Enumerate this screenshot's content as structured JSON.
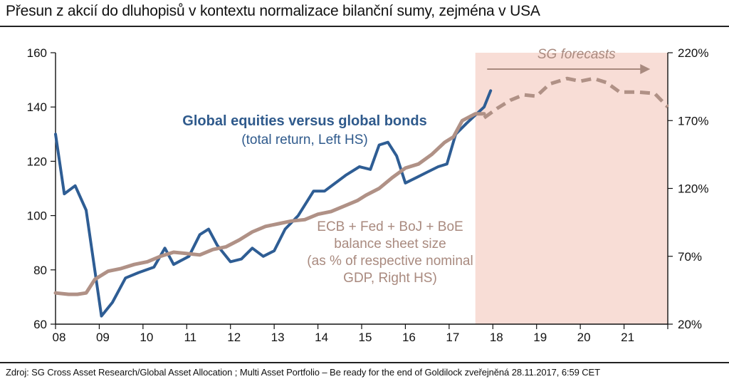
{
  "title": "Přesun z akcií do dluhopisů v kontextu normalizace bilanční sumy, zejména v USA",
  "source": "Zdroj: SG Cross Asset Research/Global Asset Allocation ; Multi Asset Portfolio – Be ready for the end of Goldilock zveřejněná 28.11.2017, 6:59 CET",
  "colors": {
    "equities": "#2e5d94",
    "balance_sheet": "#b09186",
    "forecast_band": "#f8ddd6",
    "annotation_balance": "#a98a7f"
  },
  "chart_data": {
    "type": "line",
    "x_tick_labels": [
      "08",
      "09",
      "10",
      "11",
      "12",
      "13",
      "14",
      "15",
      "16",
      "17",
      "18",
      "19",
      "20",
      "21"
    ],
    "x_range": [
      2008,
      2022
    ],
    "y_left": {
      "range": [
        60,
        160
      ],
      "ticks": [
        "60",
        "80",
        "100",
        "120",
        "140",
        "160"
      ]
    },
    "y_right": {
      "range": [
        20,
        220
      ],
      "ticks": [
        "20%",
        "70%",
        "120%",
        "170%",
        "220%"
      ]
    },
    "forecast_region": {
      "x_start": 2017.6,
      "x_end": 2022.0,
      "label": "SG forecasts"
    },
    "annotations": {
      "equities_title": "Global equities versus global bonds",
      "equities_sub": "(total return, Left HS)",
      "balance_lines": [
        "ECB + Fed + BoJ + BoE",
        "balance sheet size",
        "(as % of respective nominal",
        "GDP, Right HS)"
      ]
    },
    "series": [
      {
        "axis": "left",
        "style": "solid",
        "x": [
          2008.0,
          2008.2,
          2008.45,
          2008.7,
          2009.05,
          2009.3,
          2009.6,
          2009.9,
          2010.25,
          2010.5,
          2010.7,
          2011.05,
          2011.3,
          2011.5,
          2011.7,
          2012.0,
          2012.25,
          2012.5,
          2012.75,
          2013.0,
          2013.25,
          2013.55,
          2013.9,
          2014.15,
          2014.4,
          2014.65,
          2014.95,
          2015.2,
          2015.4,
          2015.6,
          2015.8,
          2016.0,
          2016.25,
          2016.5,
          2016.75,
          2016.95,
          2017.15,
          2017.4,
          2017.6,
          2017.8,
          2017.95
        ],
        "y": [
          130,
          108,
          111,
          102,
          63,
          68,
          77,
          79,
          81,
          88,
          82,
          85,
          93,
          95,
          89,
          83,
          84,
          88,
          85,
          87,
          95,
          100,
          109,
          109,
          112,
          115,
          118,
          117,
          126,
          127,
          122,
          112,
          114,
          116,
          118,
          119,
          130,
          134,
          137,
          140,
          146
        ]
      },
      {
        "axis": "right",
        "style": "solid",
        "x": [
          2008.0,
          2008.3,
          2008.5,
          2008.7,
          2008.9,
          2009.2,
          2009.5,
          2009.8,
          2010.1,
          2010.4,
          2010.7,
          2011.0,
          2011.3,
          2011.6,
          2011.9,
          2012.2,
          2012.5,
          2012.8,
          2013.1,
          2013.4,
          2013.7,
          2014.0,
          2014.3,
          2014.6,
          2014.9,
          2015.1,
          2015.4,
          2015.7,
          2016.0,
          2016.3,
          2016.6,
          2016.9,
          2017.1,
          2017.3,
          2017.6,
          2017.8
        ],
        "y": [
          43,
          42,
          42,
          43,
          53,
          59,
          61,
          64,
          66,
          70,
          73,
          72,
          71,
          75,
          77,
          82,
          88,
          92,
          94,
          96,
          97,
          101,
          103,
          107,
          111,
          115,
          120,
          128,
          135,
          138,
          145,
          154,
          158,
          170,
          175,
          175
        ]
      },
      {
        "axis": "right",
        "style": "dashed",
        "x": [
          2017.8,
          2018.1,
          2018.4,
          2018.7,
          2019.0,
          2019.3,
          2019.7,
          2020.0,
          2020.3,
          2020.6,
          2020.9,
          2021.3,
          2021.7,
          2022.0
        ],
        "y": [
          172,
          179,
          185,
          189,
          188,
          197,
          201,
          199,
          201,
          198,
          191,
          191,
          190,
          180
        ]
      }
    ]
  }
}
